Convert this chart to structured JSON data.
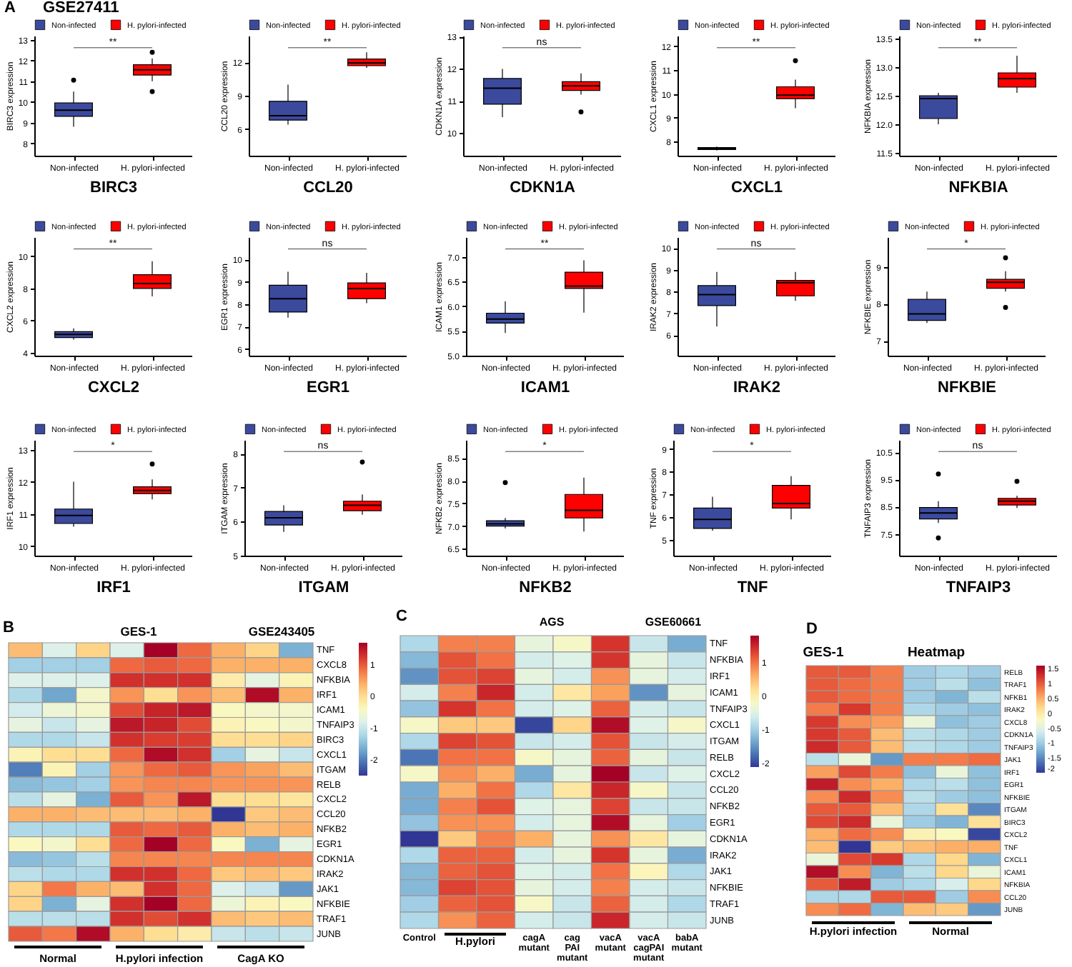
{
  "chart_data": [
    {
      "type": "box",
      "title": "GSE27411",
      "xlabel": "BIRC3",
      "ylabel": "BIRC3 expression",
      "categories": [
        "Non-infected",
        "H. pylori-infected"
      ],
      "ylim": [
        7.4,
        13.2
      ],
      "yticks": [
        8,
        9,
        10,
        11,
        12,
        13
      ],
      "legend": "top",
      "annotations": [
        "A",
        "**"
      ],
      "series": [
        {
          "name": "Non-infected",
          "color": "#3b4a9c",
          "boxes": [
            {
              "low": 8.8,
              "q1": 9.3,
              "median": 9.6,
              "q3": 9.95,
              "high": 10.5,
              "outliers": [
                11.05
              ]
            },
            null
          ]
        },
        {
          "name": "H. pylori-infected",
          "color": "#ff0000",
          "boxes": [
            null,
            {
              "low": 11.0,
              "q1": 11.3,
              "median": 11.55,
              "q3": 11.8,
              "high": 12.1,
              "outliers": [
                12.4,
                10.5
              ]
            }
          ]
        }
      ]
    },
    {
      "type": "box",
      "xlabel": "CCL20",
      "ylabel": "CCL20 expression",
      "categories": [
        "Non-infected",
        "H. pylori-infected"
      ],
      "ylim": [
        3.6,
        14.4
      ],
      "yticks": [
        6,
        9,
        12
      ],
      "legend": "top",
      "annotations": [
        "**"
      ],
      "series": [
        {
          "name": "Non-infected",
          "color": "#3b4a9c",
          "boxes": [
            {
              "low": 6.4,
              "q1": 6.8,
              "median": 7.2,
              "q3": 8.5,
              "high": 10.0
            },
            null
          ]
        },
        {
          "name": "H. pylori-infected",
          "color": "#ff0000",
          "boxes": [
            null,
            {
              "low": 11.5,
              "q1": 11.7,
              "median": 11.95,
              "q3": 12.3,
              "high": 12.9
            }
          ]
        }
      ]
    },
    {
      "type": "box",
      "xlabel": "CDKN1A",
      "ylabel": "CDKN1A expression",
      "categories": [
        "Non-infected",
        "H. pylori-infected"
      ],
      "ylim": [
        9.3,
        13.03
      ],
      "yticks": [
        10,
        11,
        12,
        13
      ],
      "legend": "top",
      "annotations": [
        "ns"
      ],
      "series": [
        {
          "name": "Non-infected",
          "color": "#3b4a9c",
          "boxes": [
            {
              "low": 10.5,
              "q1": 10.9,
              "median": 11.4,
              "q3": 11.7,
              "high": 12.0
            },
            null
          ]
        },
        {
          "name": "H. pylori-infected",
          "color": "#ff0000",
          "boxes": [
            null,
            {
              "low": 11.2,
              "q1": 11.33,
              "median": 11.47,
              "q3": 11.6,
              "high": 11.86,
              "outliers": [
                10.66
              ]
            }
          ]
        }
      ]
    },
    {
      "type": "box",
      "xlabel": "CXCL1",
      "ylabel": "CXCL1 expression",
      "categories": [
        "Non-infected",
        "H. pylori-infected"
      ],
      "ylim": [
        7.4,
        12.45
      ],
      "yticks": [
        8,
        9,
        10,
        11,
        12
      ],
      "legend": "top",
      "annotations": [
        "**"
      ],
      "series": [
        {
          "name": "Non-infected",
          "color": "#3b4a9c",
          "boxes": [
            {
              "low": 7.62,
              "q1": 7.66,
              "median": 7.7,
              "q3": 7.74,
              "high": 7.78
            },
            null
          ]
        },
        {
          "name": "H. pylori-infected",
          "color": "#ff0000",
          "boxes": [
            null,
            {
              "low": 9.4,
              "q1": 9.8,
              "median": 9.95,
              "q3": 10.3,
              "high": 10.6,
              "outliers": [
                11.4
              ]
            }
          ]
        }
      ]
    },
    {
      "type": "box",
      "xlabel": "NFKBIA",
      "ylabel": "NFKBIA expression",
      "categories": [
        "Non-infected",
        "H. pylori-infected"
      ],
      "ylim": [
        11.45,
        13.55
      ],
      "yticks": [
        11.5,
        {
          "value": 12,
          "label": "12.0"
        },
        12.5,
        {
          "value": 13,
          "label": "13.0"
        },
        13.5
      ],
      "legend": "top",
      "annotations": [
        "**"
      ],
      "series": [
        {
          "name": "Non-infected",
          "color": "#3b4a9c",
          "boxes": [
            {
              "low": 12.0,
              "q1": 12.1,
              "median": 12.45,
              "q3": 12.5,
              "high": 12.55
            },
            null
          ]
        },
        {
          "name": "H. pylori-infected",
          "color": "#ff0000",
          "boxes": [
            null,
            {
              "low": 12.55,
              "q1": 12.65,
              "median": 12.8,
              "q3": 12.9,
              "high": 13.2
            }
          ]
        }
      ]
    },
    {
      "type": "box",
      "xlabel": "CXCL2",
      "ylabel": "CXCL2 expression",
      "categories": [
        "Non-infected",
        "H. pylori-infected"
      ],
      "ylim": [
        3.8,
        11.2
      ],
      "yticks": [
        4,
        6,
        8,
        10
      ],
      "legend": "top",
      "annotations": [
        "**"
      ],
      "series": [
        {
          "name": "Non-infected",
          "color": "#3b4a9c",
          "boxes": [
            {
              "low": 4.8,
              "q1": 4.93,
              "median": 5.13,
              "q3": 5.3,
              "high": 5.5
            },
            null
          ]
        },
        {
          "name": "H. pylori-infected",
          "color": "#ff0000",
          "boxes": [
            null,
            {
              "low": 7.5,
              "q1": 8.0,
              "median": 8.3,
              "q3": 8.85,
              "high": 9.7
            }
          ]
        }
      ]
    },
    {
      "type": "box",
      "xlabel": "EGR1",
      "ylabel": "EGR1 expression",
      "categories": [
        "Non-infected",
        "H. pylori-infected"
      ],
      "ylim": [
        5.7,
        11.0
      ],
      "yticks": [
        6,
        7,
        8,
        9,
        10
      ],
      "legend": "top",
      "annotations": [
        "ns"
      ],
      "series": [
        {
          "name": "Non-infected",
          "color": "#3b4a9c",
          "boxes": [
            {
              "low": 7.4,
              "q1": 7.65,
              "median": 8.25,
              "q3": 8.85,
              "high": 9.45
            },
            null
          ]
        },
        {
          "name": "H. pylori-infected",
          "color": "#ff0000",
          "boxes": [
            null,
            {
              "low": 8.05,
              "q1": 8.25,
              "median": 8.7,
              "q3": 8.95,
              "high": 9.4
            }
          ]
        }
      ]
    },
    {
      "type": "box",
      "xlabel": "ICAM1",
      "ylabel": "ICAM1 expression",
      "categories": [
        "Non-infected",
        "H. pylori-infected"
      ],
      "ylim": [
        5.0,
        7.4
      ],
      "yticks": [
        {
          "value": 5,
          "label": "5.0"
        },
        5.5,
        {
          "value": 6,
          "label": "6.0"
        },
        6.5,
        {
          "value": 7,
          "label": "7.0"
        }
      ],
      "legend": "top",
      "annotations": [
        "**"
      ],
      "series": [
        {
          "name": "Non-infected",
          "color": "#3b4a9c",
          "boxes": [
            {
              "low": 5.46,
              "q1": 5.66,
              "median": 5.74,
              "q3": 5.86,
              "high": 6.1
            },
            null
          ]
        },
        {
          "name": "H. pylori-infected",
          "color": "#ff0000",
          "boxes": [
            null,
            {
              "low": 5.87,
              "q1": 6.36,
              "median": 6.41,
              "q3": 6.69,
              "high": 6.93
            }
          ]
        }
      ]
    },
    {
      "type": "box",
      "xlabel": "IRAK2",
      "ylabel": "IRAK2 expression",
      "categories": [
        "Non-infected",
        "H. pylori-infected"
      ],
      "ylim": [
        5.05,
        10.5
      ],
      "yticks": [
        6,
        7,
        8,
        9,
        10
      ],
      "legend": "top",
      "annotations": [
        "ns"
      ],
      "series": [
        {
          "name": "Non-infected",
          "color": "#3b4a9c",
          "boxes": [
            {
              "low": 6.4,
              "q1": 7.35,
              "median": 7.86,
              "q3": 8.27,
              "high": 8.9
            },
            null
          ]
        },
        {
          "name": "H. pylori-infected",
          "color": "#ff0000",
          "boxes": [
            null,
            {
              "low": 7.57,
              "q1": 7.8,
              "median": 8.41,
              "q3": 8.51,
              "high": 8.9
            }
          ]
        }
      ]
    },
    {
      "type": "box",
      "xlabel": "NFKBIE",
      "ylabel": "NFKBIE expression",
      "categories": [
        "Non-infected",
        "H. pylori-infected"
      ],
      "ylim": [
        6.6,
        9.8
      ],
      "yticks": [
        7,
        8,
        9
      ],
      "legend": "top",
      "annotations": [
        "*"
      ],
      "series": [
        {
          "name": "Non-infected",
          "color": "#3b4a9c",
          "boxes": [
            {
              "low": 7.48,
              "q1": 7.55,
              "median": 7.73,
              "q3": 8.12,
              "high": 8.33
            },
            null
          ]
        },
        {
          "name": "H. pylori-infected",
          "color": "#ff0000",
          "boxes": [
            null,
            {
              "low": 8.33,
              "q1": 8.42,
              "median": 8.58,
              "q3": 8.66,
              "high": 8.88,
              "outliers": [
                9.24,
                7.9
              ]
            }
          ]
        }
      ]
    },
    {
      "type": "box",
      "xlabel": "IRF1",
      "ylabel": "IRF1 expression",
      "categories": [
        "Non-infected",
        "H. pylori-infected"
      ],
      "ylim": [
        9.7,
        13.3
      ],
      "yticks": [
        10,
        11,
        12,
        13
      ],
      "legend": "top",
      "annotations": [
        "*"
      ],
      "series": [
        {
          "name": "Non-infected",
          "color": "#3b4a9c",
          "boxes": [
            {
              "low": 10.6,
              "q1": 10.7,
              "median": 10.95,
              "q3": 11.15,
              "high": 12.0
            },
            null
          ]
        },
        {
          "name": "H. pylori-infected",
          "color": "#ff0000",
          "boxes": [
            null,
            {
              "low": 11.45,
              "q1": 11.63,
              "median": 11.73,
              "q3": 11.84,
              "high": 12.07,
              "outliers": [
                12.55
              ]
            }
          ]
        }
      ]
    },
    {
      "type": "box",
      "xlabel": "ITGAM",
      "ylabel": "ITGAM expression",
      "categories": [
        "Non-infected",
        "H. pylori-infected"
      ],
      "ylim": [
        5.0,
        8.4
      ],
      "yticks": [
        5,
        6,
        7,
        8
      ],
      "legend": "top",
      "annotations": [
        "ns"
      ],
      "series": [
        {
          "name": "Non-infected",
          "color": "#3b4a9c",
          "boxes": [
            {
              "low": 5.7,
              "q1": 5.9,
              "median": 6.11,
              "q3": 6.3,
              "high": 6.48
            },
            null
          ]
        },
        {
          "name": "H. pylori-infected",
          "color": "#ff0000",
          "boxes": [
            null,
            {
              "low": 6.2,
              "q1": 6.32,
              "median": 6.48,
              "q3": 6.6,
              "high": 6.8,
              "outliers": [
                7.75
              ]
            }
          ]
        }
      ]
    },
    {
      "type": "box",
      "xlabel": "NFKB2",
      "ylabel": "NFKB2 expression",
      "categories": [
        "Non-infected",
        "H. pylori-infected"
      ],
      "ylim": [
        6.35,
        8.9
      ],
      "yticks": [
        6.5,
        {
          "value": 7,
          "label": "7.0"
        },
        7.5,
        {
          "value": 8,
          "label": "8.0"
        },
        8.5
      ],
      "legend": "top",
      "annotations": [
        "*"
      ],
      "series": [
        {
          "name": "Non-infected",
          "color": "#3b4a9c",
          "boxes": [
            {
              "low": 6.95,
              "q1": 7.0,
              "median": 7.05,
              "q3": 7.12,
              "high": 7.18,
              "outliers": [
                7.96
              ]
            },
            null
          ]
        },
        {
          "name": "H. pylori-infected",
          "color": "#ff0000",
          "boxes": [
            null,
            {
              "low": 6.88,
              "q1": 7.18,
              "median": 7.35,
              "q3": 7.7,
              "high": 8.07
            }
          ]
        }
      ]
    },
    {
      "type": "box",
      "xlabel": "TNF",
      "ylabel": "TNF expression",
      "categories": [
        "Non-infected",
        "H. pylori-infected"
      ],
      "ylim": [
        4.3,
        9.4
      ],
      "yticks": [
        5,
        6,
        7,
        8,
        9
      ],
      "legend": "top",
      "annotations": [
        "*"
      ],
      "series": [
        {
          "name": "Non-infected",
          "color": "#3b4a9c",
          "boxes": [
            {
              "low": 5.4,
              "q1": 5.5,
              "median": 5.9,
              "q3": 6.4,
              "high": 6.9
            },
            null
          ]
        },
        {
          "name": "H. pylori-infected",
          "color": "#ff0000",
          "boxes": [
            null,
            {
              "low": 5.9,
              "q1": 6.4,
              "median": 6.6,
              "q3": 7.4,
              "high": 7.8
            }
          ]
        }
      ]
    },
    {
      "type": "box",
      "xlabel": "TNFAIP3",
      "ylabel": "TNFAIP3 expression",
      "categories": [
        "Non-infected",
        "H. pylori-infected"
      ],
      "ylim": [
        6.7,
        10.95
      ],
      "yticks": [
        7.5,
        8.5,
        9.5,
        10.5
      ],
      "legend": "top",
      "annotations": [
        "ns"
      ],
      "series": [
        {
          "name": "Non-infected",
          "color": "#3b4a9c",
          "boxes": [
            {
              "low": 7.9,
              "q1": 8.05,
              "median": 8.27,
              "q3": 8.47,
              "high": 8.7,
              "outliers": [
                9.7,
                7.35
              ]
            },
            null
          ]
        },
        {
          "name": "H. pylori-infected",
          "color": "#ff0000",
          "boxes": [
            null,
            {
              "low": 8.45,
              "q1": 8.56,
              "median": 8.7,
              "q3": 8.8,
              "high": 8.9,
              "outliers": [
                9.43
              ]
            }
          ]
        }
      ]
    },
    {
      "type": "heatmap",
      "title": "GES-1",
      "subtitle": "GSE243405",
      "annotations": [
        "B",
        "Normal",
        "H.pylori infection",
        "CagA KO"
      ],
      "categories": [
        null,
        null,
        null,
        null,
        null,
        null,
        null,
        null,
        null
      ],
      "y_categories": [
        "TNF",
        "CXCL8",
        "NFKBIA",
        "IRF1",
        "ICAM1",
        "TNFAIP3",
        "BIRC3",
        "CXCL1",
        "ITGAM",
        "RELB",
        "CXCL2",
        "CCL20",
        "NFKB2",
        "EGR1",
        "CDKN1A",
        "IRAK2",
        "JAK1",
        "NFKBIE",
        "TRAF1",
        "JUNB"
      ],
      "clim": [
        -2.5,
        1.7
      ],
      "cticks": [
        1,
        0,
        -1,
        -2
      ],
      "cells": [
        [
          0.3,
          -0.8,
          0.1,
          -0.8,
          1.7,
          0.9,
          0.4,
          0.1,
          -1.6
        ],
        [
          -1.3,
          -1.3,
          -1.3,
          0.9,
          1.0,
          0.9,
          0.4,
          0.4,
          0.4
        ],
        [
          -0.8,
          -0.8,
          -0.8,
          1.3,
          1.3,
          1.3,
          -0.2,
          -0.7,
          -0.3
        ],
        [
          -1.2,
          -1.7,
          -0.5,
          0.6,
          0.0,
          0.6,
          0.3,
          1.6,
          0.4
        ],
        [
          -0.9,
          -0.6,
          -0.5,
          1.1,
          1.4,
          1.5,
          -0.4,
          -0.5,
          -0.5
        ],
        [
          -0.7,
          -1.0,
          -0.7,
          1.5,
          1.4,
          1.1,
          -0.3,
          -0.4,
          -0.5
        ],
        [
          -1.2,
          -1.2,
          -1.0,
          1.3,
          1.2,
          1.2,
          0.0,
          0.0,
          0.1
        ],
        [
          -0.3,
          0.0,
          0.0,
          0.9,
          1.6,
          1.3,
          -1.3,
          -0.7,
          -1.0
        ],
        [
          -2.0,
          -0.3,
          -1.3,
          0.6,
          0.9,
          1.0,
          0.6,
          0.5,
          0.3
        ],
        [
          -1.5,
          -1.4,
          -1.3,
          0.6,
          0.7,
          0.7,
          0.6,
          0.6,
          0.6
        ],
        [
          -1.1,
          -0.7,
          -1.6,
          1.0,
          0.6,
          1.5,
          0.0,
          0.0,
          -0.1
        ],
        [
          0.4,
          0.4,
          0.3,
          0.3,
          0.3,
          0.4,
          -2.5,
          0.2,
          0.3
        ],
        [
          -1.2,
          -1.2,
          -1.2,
          1.0,
          0.9,
          1.0,
          0.4,
          0.3,
          0.4
        ],
        [
          -0.4,
          -0.5,
          0.0,
          0.9,
          1.7,
          0.9,
          -0.4,
          -1.6,
          -0.7
        ],
        [
          -1.5,
          -1.4,
          -1.1,
          0.7,
          0.7,
          0.7,
          0.7,
          0.7,
          0.7
        ],
        [
          -1.1,
          -1.2,
          -1.2,
          1.3,
          1.3,
          0.9,
          0.2,
          0.3,
          0.2
        ],
        [
          0.1,
          0.8,
          0.4,
          0.3,
          1.3,
          0.9,
          -0.8,
          -1.0,
          -1.8
        ],
        [
          0.1,
          -1.6,
          -0.7,
          1.3,
          1.7,
          0.9,
          -0.6,
          -0.3,
          -0.4
        ],
        [
          -1.1,
          -1.1,
          -1.1,
          1.3,
          1.1,
          1.3,
          0.3,
          0.2,
          0.3
        ],
        [
          1.0,
          0.8,
          1.6,
          0.4,
          0.0,
          -0.2,
          -1.0,
          -1.1,
          -1.0
        ]
      ]
    },
    {
      "type": "heatmap",
      "title": "AGS",
      "subtitle": "GSE60661",
      "annotations": [
        "C",
        "H.pylori"
      ],
      "categories": [
        "Control",
        null,
        null,
        "cagA mutant",
        "cag PAI mutant",
        "vacA mutant",
        "vacA cagPAI mutant",
        "babA mutant"
      ],
      "y_categories": [
        "TNF",
        "NFKBIA",
        "IRF1",
        "ICAM1",
        "TNFAIP3",
        "CXCL1",
        "ITGAM",
        "RELB",
        "CXCL2",
        "CCL20",
        "NFKB2",
        "EGR1",
        "CDKN1A",
        "IRAK2",
        "JAK1",
        "NFKBIE",
        "TRAF1",
        "JUNB"
      ],
      "clim": [
        -2.1,
        1.8
      ],
      "cticks": [
        1,
        0,
        -1,
        -2
      ],
      "cells": [
        [
          -0.9,
          0.9,
          0.9,
          -0.4,
          -0.2,
          1.4,
          -0.7,
          -1.3
        ],
        [
          -1.2,
          1.2,
          1.0,
          -0.6,
          -0.5,
          1.4,
          -0.4,
          -0.7
        ],
        [
          -1.5,
          1.2,
          1.3,
          -0.4,
          -0.6,
          0.8,
          -0.4,
          -0.6
        ],
        [
          -0.6,
          0.9,
          1.5,
          -0.6,
          0.1,
          0.7,
          -1.5,
          -0.4
        ],
        [
          -1.1,
          1.4,
          1.0,
          -0.6,
          -0.5,
          1.1,
          -0.6,
          -0.7
        ],
        [
          -0.2,
          0.4,
          0.4,
          -2.0,
          0.3,
          1.7,
          -0.5,
          -0.2
        ],
        [
          -0.9,
          1.3,
          1.2,
          -0.7,
          -0.6,
          1.2,
          -0.7,
          -0.6
        ],
        [
          -1.7,
          1.0,
          1.0,
          -0.2,
          -0.4,
          1.1,
          -0.4,
          -0.7
        ],
        [
          -0.2,
          0.8,
          0.6,
          -1.3,
          -0.4,
          1.8,
          -0.7,
          -0.5
        ],
        [
          -1.3,
          0.6,
          1.0,
          -0.9,
          0.1,
          1.5,
          -0.2,
          -0.7
        ],
        [
          -1.3,
          0.9,
          1.2,
          -0.5,
          -0.4,
          1.3,
          -0.7,
          -0.7
        ],
        [
          -1.1,
          0.8,
          0.8,
          -0.6,
          -0.4,
          1.7,
          -0.4,
          -1.0
        ],
        [
          -2.1,
          0.4,
          0.9,
          0.6,
          -0.4,
          0.8,
          0.1,
          -0.4
        ],
        [
          -0.9,
          1.1,
          1.1,
          -0.6,
          -0.4,
          1.4,
          -0.4,
          -1.3
        ],
        [
          -1.2,
          1.1,
          1.2,
          -0.5,
          -0.6,
          1.0,
          -0.1,
          -0.9
        ],
        [
          -1.2,
          1.3,
          1.2,
          -0.4,
          -0.6,
          0.9,
          -0.6,
          -0.7
        ],
        [
          -1.0,
          1.1,
          1.2,
          -0.2,
          -0.7,
          1.1,
          -0.6,
          -0.9
        ],
        [
          -0.9,
          0.8,
          1.1,
          -0.6,
          -0.7,
          1.5,
          -0.6,
          -0.7
        ]
      ]
    },
    {
      "type": "heatmap",
      "title": "GES-1",
      "subtitle": "Heatmap",
      "annotations": [
        "D",
        "H.pylori infection",
        "Normal"
      ],
      "categories": [
        null,
        null,
        null,
        null,
        null,
        null
      ],
      "y_categories": [
        "RELB",
        "TRAF1",
        "NFKB1",
        "IRAK2",
        "CXCL8",
        "CDKN1A",
        "TNFAIP3",
        "JAK1",
        "IRF1",
        "EGR1",
        "NFKBIE",
        "ITGAM",
        "BIRC3",
        "CXCL2",
        "TNF",
        "CXCL1",
        "ICAM1",
        "NFKBIA",
        "CCL20",
        "JUNB"
      ],
      "clim": [
        -2,
        1.6
      ],
      "cticks": [
        1.5,
        1,
        0.5,
        0,
        -0.5,
        -1,
        -1.5,
        -2
      ],
      "cells": [
        [
          1.0,
          1.0,
          0.8,
          -1.0,
          -0.9,
          -1.0
        ],
        [
          1.0,
          0.9,
          0.8,
          -1.0,
          -0.8,
          -1.1
        ],
        [
          1.0,
          0.9,
          0.8,
          -1.0,
          -1.2,
          -0.8
        ],
        [
          0.8,
          1.2,
          0.8,
          -0.9,
          -1.0,
          -1.1
        ],
        [
          1.2,
          0.7,
          0.6,
          -0.4,
          -1.1,
          -1.0
        ],
        [
          1.2,
          1.0,
          0.4,
          -0.8,
          -0.9,
          -1.0
        ],
        [
          1.3,
          1.0,
          0.4,
          -0.8,
          -0.9,
          -1.0
        ],
        [
          -0.8,
          -0.4,
          -1.4,
          0.8,
          0.8,
          0.9
        ],
        [
          0.6,
          1.1,
          0.8,
          -1.1,
          -0.4,
          -1.1
        ],
        [
          1.4,
          0.7,
          0.5,
          -0.9,
          -0.8,
          -1.1
        ],
        [
          0.7,
          1.3,
          0.7,
          -0.8,
          -1.0,
          -1.1
        ],
        [
          1.0,
          1.0,
          0.4,
          -0.9,
          0.1,
          -1.5
        ],
        [
          1.1,
          1.3,
          -0.4,
          -1.0,
          -1.2,
          0.1
        ],
        [
          0.5,
          0.9,
          0.7,
          -0.1,
          -0.2,
          -1.9
        ],
        [
          0.4,
          -2.0,
          0.3,
          0.4,
          0.5,
          0.5
        ],
        [
          -0.4,
          1.1,
          1.2,
          -0.9,
          0.2,
          -1.2
        ],
        [
          1.5,
          0.7,
          -1.2,
          -0.8,
          0.2,
          -0.4
        ],
        [
          1.0,
          1.4,
          -1.0,
          -0.9,
          -0.6,
          0.2
        ],
        [
          -0.9,
          -0.9,
          1.0,
          1.0,
          -1.0,
          0.7
        ],
        [
          0.7,
          0.9,
          -1.2,
          0.4,
          0.3,
          -1.4
        ]
      ]
    }
  ]
}
